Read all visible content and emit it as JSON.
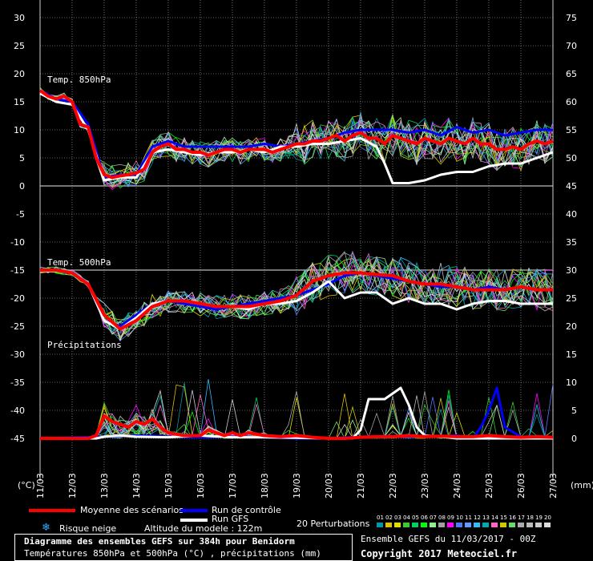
{
  "chart_data": {
    "type": "line",
    "left_axis": {
      "unit_label": "(°C)",
      "ticks": [
        30,
        25,
        20,
        15,
        10,
        5,
        0,
        -5,
        -10,
        -15,
        -20,
        -25,
        -30,
        -35,
        -40,
        -45
      ]
    },
    "right_axis": {
      "unit_label": "(mm)",
      "ticks": [
        75,
        70,
        65,
        60,
        55,
        50,
        45,
        40,
        35,
        30,
        25,
        20,
        15,
        10,
        5,
        0
      ]
    },
    "x_tick_labels": [
      "11/03",
      "12/03",
      "13/03",
      "14/03",
      "15/03",
      "16/03",
      "17/03",
      "18/03",
      "19/03",
      "20/03",
      "21/03",
      "22/03",
      "23/03",
      "24/03",
      "25/03",
      "26/03",
      "27/03"
    ],
    "grid": true,
    "panel_labels": {
      "t850": "Temp. 850hPa",
      "t500": "Temp. 500hPa",
      "precip": "Précipitations"
    },
    "mean_t850": [
      [
        0,
        17
      ],
      [
        0.25,
        16
      ],
      [
        0.5,
        15.5
      ],
      [
        0.75,
        16
      ],
      [
        1,
        15
      ],
      [
        1.25,
        11
      ],
      [
        1.5,
        10.5
      ],
      [
        1.75,
        5
      ],
      [
        2,
        2
      ],
      [
        2.25,
        1.5
      ],
      [
        2.5,
        1.8
      ],
      [
        2.75,
        2
      ],
      [
        3,
        2.3
      ],
      [
        3.25,
        3
      ],
      [
        3.5,
        6
      ],
      [
        3.75,
        7
      ],
      [
        4,
        7.5
      ],
      [
        4.25,
        6.5
      ],
      [
        4.5,
        6.5
      ],
      [
        4.75,
        6
      ],
      [
        5,
        6
      ],
      [
        5.25,
        5.5
      ],
      [
        5.5,
        6
      ],
      [
        5.75,
        6.5
      ],
      [
        6,
        6.5
      ],
      [
        6.25,
        6
      ],
      [
        6.5,
        6.5
      ],
      [
        6.75,
        6.5
      ],
      [
        7,
        6.5
      ],
      [
        7.25,
        6
      ],
      [
        7.5,
        6.5
      ],
      [
        7.75,
        7
      ],
      [
        8,
        7.5
      ],
      [
        8.25,
        7.5
      ],
      [
        8.5,
        8
      ],
      [
        8.75,
        8
      ],
      [
        9,
        8.5
      ],
      [
        9.25,
        9
      ],
      [
        9.5,
        8
      ],
      [
        9.75,
        9
      ],
      [
        10,
        9.5
      ],
      [
        10.25,
        8.5
      ],
      [
        10.5,
        8.5
      ],
      [
        10.75,
        7.5
      ],
      [
        11,
        9
      ],
      [
        11.25,
        8.5
      ],
      [
        11.5,
        8
      ],
      [
        11.75,
        7.5
      ],
      [
        12,
        8.5
      ],
      [
        12.25,
        8
      ],
      [
        12.5,
        7.5
      ],
      [
        12.75,
        8.5
      ],
      [
        13,
        8
      ],
      [
        13.25,
        7.5
      ],
      [
        13.5,
        8.5
      ],
      [
        13.75,
        7.5
      ],
      [
        14,
        7.5
      ],
      [
        14.25,
        6.5
      ],
      [
        14.5,
        6.5
      ],
      [
        14.75,
        7
      ],
      [
        15,
        6.5
      ],
      [
        15.25,
        7.5
      ],
      [
        15.5,
        8
      ],
      [
        15.75,
        7.5
      ],
      [
        16,
        8
      ]
    ],
    "gfs_t850": [
      [
        0,
        16.5
      ],
      [
        0.5,
        15
      ],
      [
        1,
        14.5
      ],
      [
        1.5,
        10
      ],
      [
        2,
        1
      ],
      [
        2.5,
        1.5
      ],
      [
        3,
        1.5
      ],
      [
        3.5,
        6
      ],
      [
        4,
        6.5
      ],
      [
        4.5,
        6
      ],
      [
        5,
        5.5
      ],
      [
        5.5,
        6
      ],
      [
        6,
        6
      ],
      [
        6.5,
        6.5
      ],
      [
        7,
        6
      ],
      [
        7.5,
        7
      ],
      [
        8,
        7
      ],
      [
        8.5,
        7.5
      ],
      [
        9,
        7.5
      ],
      [
        9.5,
        8
      ],
      [
        10,
        8.5
      ],
      [
        10.5,
        7
      ],
      [
        10.75,
        4
      ],
      [
        11,
        0.5
      ],
      [
        11.5,
        0.5
      ],
      [
        12,
        1
      ],
      [
        12.5,
        2
      ],
      [
        13,
        2.5
      ],
      [
        13.5,
        2.5
      ],
      [
        14,
        3.5
      ],
      [
        14.5,
        4
      ],
      [
        15,
        4
      ],
      [
        15.5,
        5
      ],
      [
        16,
        6
      ]
    ],
    "control_t850": [
      [
        0,
        17
      ],
      [
        0.5,
        15.5
      ],
      [
        1,
        15
      ],
      [
        1.5,
        11
      ],
      [
        2,
        1.5
      ],
      [
        2.5,
        2
      ],
      [
        3,
        2
      ],
      [
        3.5,
        7
      ],
      [
        4,
        8
      ],
      [
        4.5,
        7
      ],
      [
        5,
        7
      ],
      [
        5.5,
        7
      ],
      [
        6,
        7
      ],
      [
        6.5,
        7
      ],
      [
        7,
        7.5
      ],
      [
        7.5,
        7
      ],
      [
        8,
        7.5
      ],
      [
        8.5,
        8
      ],
      [
        9,
        8.5
      ],
      [
        9.5,
        9.5
      ],
      [
        10,
        10
      ],
      [
        10.5,
        10
      ],
      [
        11,
        10
      ],
      [
        11.5,
        9.5
      ],
      [
        12,
        10
      ],
      [
        12.5,
        9
      ],
      [
        13,
        10.5
      ],
      [
        13.5,
        9.5
      ],
      [
        14,
        10
      ],
      [
        14.5,
        9
      ],
      [
        15,
        9.5
      ],
      [
        15.5,
        10
      ],
      [
        16,
        10
      ]
    ],
    "mean_t500": [
      [
        0,
        -15
      ],
      [
        0.5,
        -15
      ],
      [
        1,
        -15.5
      ],
      [
        1.5,
        -17.5
      ],
      [
        2,
        -23
      ],
      [
        2.5,
        -25.5
      ],
      [
        3,
        -24
      ],
      [
        3.5,
        -21.5
      ],
      [
        4,
        -20.5
      ],
      [
        4.5,
        -20.5
      ],
      [
        5,
        -21
      ],
      [
        5.5,
        -21.5
      ],
      [
        6,
        -21.5
      ],
      [
        6.5,
        -21.5
      ],
      [
        7,
        -21
      ],
      [
        7.5,
        -20.5
      ],
      [
        8,
        -19.5
      ],
      [
        8.5,
        -17
      ],
      [
        9,
        -16
      ],
      [
        9.5,
        -15.5
      ],
      [
        10,
        -15.5
      ],
      [
        10.5,
        -15.8
      ],
      [
        11,
        -16
      ],
      [
        11.5,
        -17
      ],
      [
        12,
        -17.5
      ],
      [
        12.5,
        -17.5
      ],
      [
        13,
        -18
      ],
      [
        13.5,
        -18.5
      ],
      [
        14,
        -18.5
      ],
      [
        14.5,
        -18.5
      ],
      [
        15,
        -18
      ],
      [
        15.5,
        -18.5
      ],
      [
        16,
        -18.5
      ]
    ],
    "gfs_t500": [
      [
        0,
        -15
      ],
      [
        0.5,
        -15
      ],
      [
        1,
        -15.5
      ],
      [
        1.5,
        -17.5
      ],
      [
        2,
        -24
      ],
      [
        2.5,
        -25.5
      ],
      [
        3,
        -23.5
      ],
      [
        3.5,
        -21
      ],
      [
        4,
        -20.5
      ],
      [
        4.5,
        -20.5
      ],
      [
        5,
        -21
      ],
      [
        5.5,
        -21.5
      ],
      [
        6,
        -21.5
      ],
      [
        6.5,
        -22
      ],
      [
        7,
        -21
      ],
      [
        7.5,
        -21
      ],
      [
        8,
        -20.5
      ],
      [
        8.5,
        -19
      ],
      [
        9,
        -17
      ],
      [
        9.5,
        -20
      ],
      [
        10,
        -19
      ],
      [
        10.5,
        -19
      ],
      [
        11,
        -21
      ],
      [
        11.5,
        -20
      ],
      [
        12,
        -21
      ],
      [
        12.5,
        -21
      ],
      [
        13,
        -22
      ],
      [
        13.5,
        -21
      ],
      [
        14,
        -20.5
      ],
      [
        14.5,
        -20.5
      ],
      [
        15,
        -21
      ],
      [
        15.5,
        -21
      ],
      [
        16,
        -21
      ]
    ],
    "control_t500": [
      [
        0,
        -15
      ],
      [
        0.5,
        -15
      ],
      [
        1,
        -15.5
      ],
      [
        1.5,
        -17.5
      ],
      [
        2,
        -24
      ],
      [
        2.5,
        -25
      ],
      [
        3,
        -23
      ],
      [
        3.5,
        -21
      ],
      [
        4,
        -20.5
      ],
      [
        4.5,
        -21
      ],
      [
        5,
        -21.5
      ],
      [
        5.5,
        -22
      ],
      [
        6,
        -21.5
      ],
      [
        6.5,
        -21
      ],
      [
        7,
        -20.5
      ],
      [
        7.5,
        -20
      ],
      [
        8,
        -19.5
      ],
      [
        8.5,
        -18.5
      ],
      [
        9,
        -17.5
      ],
      [
        9.5,
        -16
      ],
      [
        10,
        -15.5
      ],
      [
        10.5,
        -16
      ],
      [
        11,
        -16.5
      ],
      [
        11.5,
        -17
      ],
      [
        12,
        -17.5
      ],
      [
        12.5,
        -18
      ],
      [
        13,
        -18
      ],
      [
        13.5,
        -18.5
      ],
      [
        14,
        -18
      ],
      [
        14.5,
        -18.5
      ],
      [
        15,
        -18
      ],
      [
        15.5,
        -18.5
      ],
      [
        16,
        -18.5
      ]
    ],
    "mean_precip": [
      [
        0,
        0
      ],
      [
        1,
        0
      ],
      [
        1.5,
        0
      ],
      [
        1.75,
        0.5
      ],
      [
        2,
        4
      ],
      [
        2.25,
        3
      ],
      [
        2.5,
        2.5
      ],
      [
        2.75,
        2
      ],
      [
        3,
        3
      ],
      [
        3.25,
        2.5
      ],
      [
        3.5,
        3.5
      ],
      [
        3.75,
        2
      ],
      [
        4,
        1
      ],
      [
        4.5,
        0.5
      ],
      [
        5,
        0.5
      ],
      [
        5.25,
        1.5
      ],
      [
        5.5,
        1
      ],
      [
        5.75,
        0.5
      ],
      [
        6,
        1
      ],
      [
        6.25,
        0.5
      ],
      [
        6.5,
        1
      ],
      [
        7,
        0.5
      ],
      [
        7.5,
        0.3
      ],
      [
        8,
        0.5
      ],
      [
        8.5,
        0.2
      ],
      [
        9,
        0
      ],
      [
        9.5,
        0
      ],
      [
        10,
        0.2
      ],
      [
        10.5,
        0.3
      ],
      [
        11,
        0.3
      ],
      [
        11.5,
        0.5
      ],
      [
        12,
        0.3
      ],
      [
        12.5,
        0.4
      ],
      [
        13,
        0.3
      ],
      [
        13.5,
        0.3
      ],
      [
        14,
        0.5
      ],
      [
        14.5,
        0.3
      ],
      [
        15,
        0.2
      ],
      [
        15.5,
        0.3
      ],
      [
        16,
        0.2
      ]
    ],
    "gfs_precip": [
      [
        0,
        0
      ],
      [
        1.75,
        0
      ],
      [
        2,
        0.3
      ],
      [
        2.5,
        0.5
      ],
      [
        3,
        0.3
      ],
      [
        4,
        0.2
      ],
      [
        5,
        0.5
      ],
      [
        6,
        0.2
      ],
      [
        7,
        0.2
      ],
      [
        8,
        0.1
      ],
      [
        9,
        0
      ],
      [
        9.75,
        0
      ],
      [
        10,
        1.5
      ],
      [
        10.25,
        7
      ],
      [
        10.75,
        7
      ],
      [
        11,
        8
      ],
      [
        11.25,
        9
      ],
      [
        11.5,
        6
      ],
      [
        11.75,
        2
      ],
      [
        12,
        0.5
      ],
      [
        12.5,
        0.3
      ],
      [
        13,
        0
      ],
      [
        14,
        0
      ],
      [
        15,
        0
      ],
      [
        16,
        0
      ]
    ],
    "control_precip": [
      [
        0,
        0
      ],
      [
        2,
        0.3
      ],
      [
        3,
        0.5
      ],
      [
        4,
        0.3
      ],
      [
        5,
        0.2
      ],
      [
        6,
        0.3
      ],
      [
        7,
        0.2
      ],
      [
        8,
        0
      ],
      [
        9,
        0
      ],
      [
        10,
        0.3
      ],
      [
        11,
        0.3
      ],
      [
        12,
        0.3
      ],
      [
        13,
        0.5
      ],
      [
        13.5,
        0
      ],
      [
        13.75,
        2
      ],
      [
        14,
        5
      ],
      [
        14.25,
        9
      ],
      [
        14.5,
        2
      ],
      [
        15,
        0.3
      ],
      [
        16,
        0
      ]
    ]
  },
  "colors": {
    "mean": "#ff0000",
    "control": "#0000ff",
    "gfs": "#ffffff",
    "perturbations": [
      "#0097a7",
      "#e0c000",
      "#e0e000",
      "#33cc33",
      "#00d060",
      "#00ff00",
      "#90ee90",
      "#a0a0a0",
      "#ff00ff",
      "#5577ff",
      "#6699ff",
      "#33bbff",
      "#00aaaa",
      "#ff66cc",
      "#cccc00",
      "#66dd66",
      "#aaaaaa",
      "#bbbbbb",
      "#cccccc",
      "#dddddd"
    ]
  },
  "legend": {
    "mean_label": "Moyenne des scénarios",
    "control_label": "Run de contrôle",
    "gfs_label": "Run GFS",
    "perturbations_label": "20 Perturbations",
    "perturbation_numbers": [
      "01",
      "02",
      "03",
      "04",
      "05",
      "06",
      "07",
      "08",
      "09",
      "10",
      "11",
      "12",
      "13",
      "14",
      "15",
      "16",
      "17",
      "18",
      "19",
      "20"
    ],
    "snow_icon": "snowflake-icon",
    "snow_label": "Risque neige",
    "altitude_label": "Altitude du modele : 122m"
  },
  "footer": {
    "title_line1": "Diagramme des ensembles GEFS sur 384h pour Benidorm",
    "title_line2": "Températures 850hPa et 500hPa (°C) , précipitations (mm)",
    "run_info": "Ensemble GEFS du 11/03/2017 - 00Z",
    "copyright": "Copyright 2017 Meteociel.fr"
  }
}
